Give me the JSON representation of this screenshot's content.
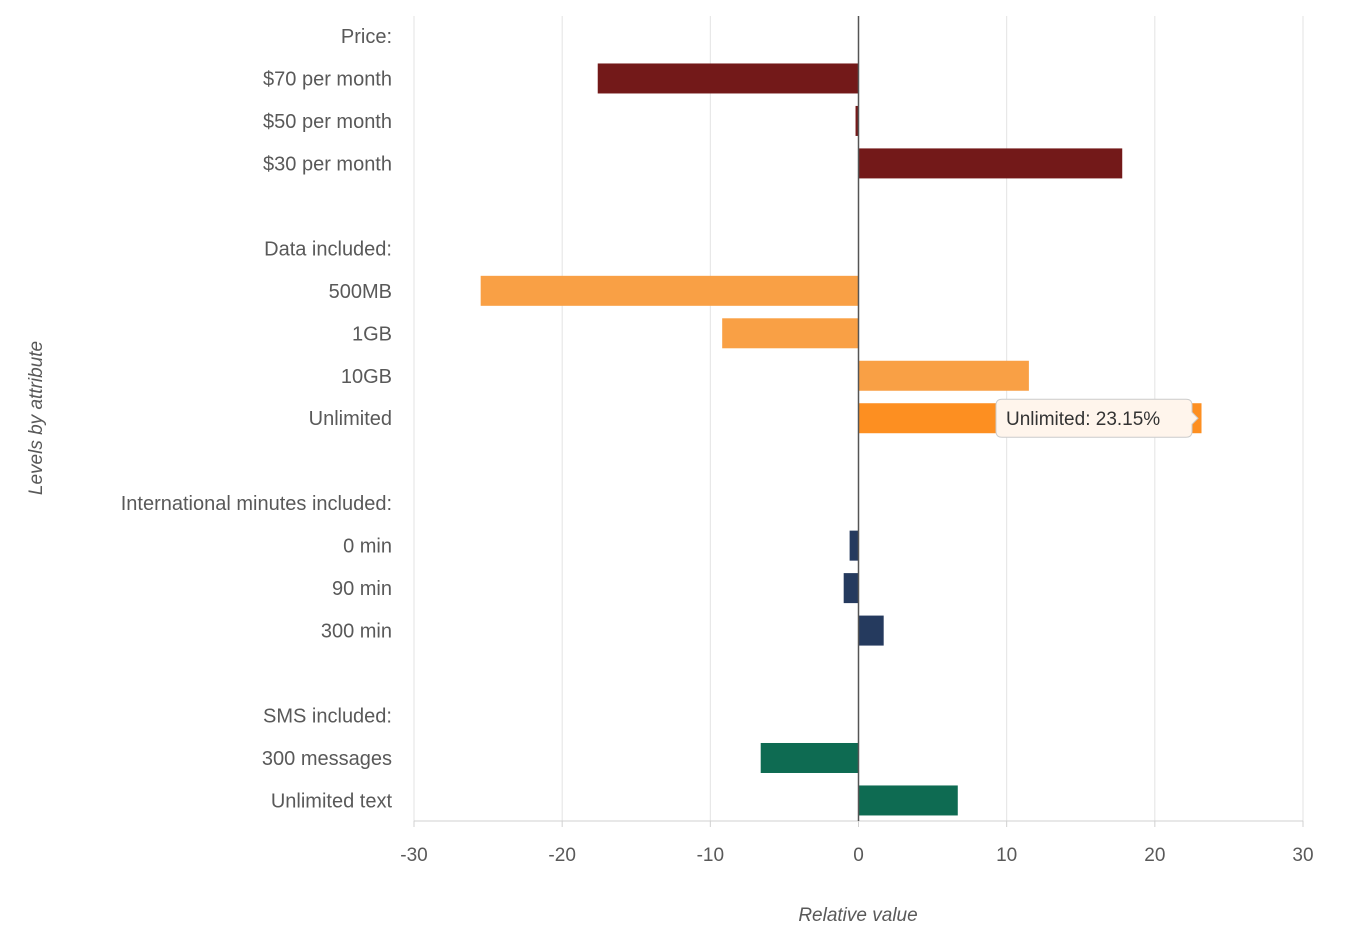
{
  "chart_data": {
    "type": "bar",
    "orientation": "horizontal",
    "xlabel": "Relative value",
    "ylabel": "Levels by attribute",
    "xlim": [
      -30,
      30
    ],
    "xticks": [
      "-30",
      "-20",
      "-10",
      "0",
      "10",
      "20",
      "30"
    ],
    "grid": true,
    "legend": "none",
    "rows": [
      {
        "label": "Price:",
        "value": null,
        "color": null
      },
      {
        "label": "$70 per month",
        "value": -17.6,
        "color": "#731919"
      },
      {
        "label": "$50 per month",
        "value": -0.2,
        "color": "#731919"
      },
      {
        "label": "$30 per month",
        "value": 17.8,
        "color": "#731919"
      },
      {
        "label": "",
        "value": null,
        "color": null
      },
      {
        "label": "Data included:",
        "value": null,
        "color": null
      },
      {
        "label": "500MB",
        "value": -25.5,
        "color": "#f9a045"
      },
      {
        "label": "1GB",
        "value": -9.2,
        "color": "#f9a045"
      },
      {
        "label": "10GB",
        "value": 11.5,
        "color": "#f9a045"
      },
      {
        "label": "Unlimited",
        "value": 23.15,
        "color": "#fd8f21"
      },
      {
        "label": "",
        "value": null,
        "color": null
      },
      {
        "label": "International minutes included:",
        "value": null,
        "color": null
      },
      {
        "label": "0 min",
        "value": -0.6,
        "color": "#253a5e"
      },
      {
        "label": "90 min",
        "value": -1.0,
        "color": "#253a5e"
      },
      {
        "label": "300 min",
        "value": 1.7,
        "color": "#253a5e"
      },
      {
        "label": "",
        "value": null,
        "color": null
      },
      {
        "label": "SMS included:",
        "value": null,
        "color": null
      },
      {
        "label": "300 messages",
        "value": -6.6,
        "color": "#0e6b52"
      },
      {
        "label": "Unlimited text",
        "value": 6.7,
        "color": "#0e6b52"
      }
    ],
    "tooltip": {
      "text": "Unlimited: 23.15%",
      "row": 9
    }
  }
}
